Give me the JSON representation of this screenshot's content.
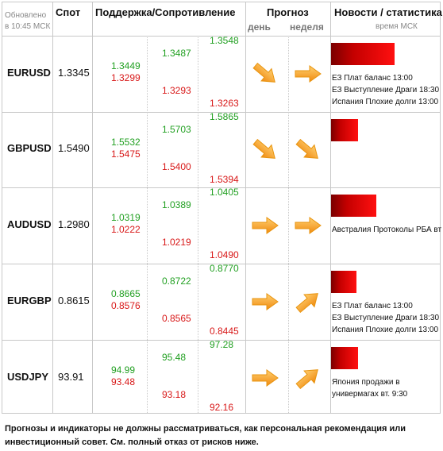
{
  "header": {
    "updated_line1": "Обновлено",
    "updated_line2": "в 10:45 МСК",
    "spot": "Спот",
    "support_resistance": "Поддержка/Сопротивление",
    "forecast": "Прогноз",
    "day": "день",
    "week": "неделя",
    "news": "Новости / статистика",
    "time_msk": "время МСК"
  },
  "rows": [
    {
      "pair": "EURUSD",
      "spot": "1.3345",
      "sup1_g": "1.3449",
      "sup1_r": "1.3299",
      "sup2_g": "1.3487",
      "sup2_r": "1.3293",
      "sup3_g": "1.3548",
      "sup3_r": "1.3263",
      "day_dir": "down-right",
      "week_dir": "right",
      "news": [
        "ЕЗ Плат баланс 13:00",
        "ЕЗ Выступление Драги 18:30",
        "Испания Плохие долги 13:00"
      ]
    },
    {
      "pair": "GBPUSD",
      "spot": "1.5490",
      "sup1_g": "1.5532",
      "sup1_r": "1.5475",
      "sup2_g": "1.5703",
      "sup2_r": "1.5400",
      "sup3_g": "1.5865",
      "sup3_r": "1.5394",
      "day_dir": "down-right",
      "week_dir": "down-right",
      "news": []
    },
    {
      "pair": "AUDUSD",
      "spot": "1.2980",
      "sup1_g": "1.0319",
      "sup1_r": "1.0222",
      "sup2_g": "1.0389",
      "sup2_r": "1.0219",
      "sup3_g": "1.0405",
      "sup3_r": "1.0490",
      "day_dir": "right",
      "week_dir": "right",
      "news": [
        "Австралия Протоколы РБА вт"
      ]
    },
    {
      "pair": "EURGBP",
      "spot": "0.8615",
      "sup1_g": "0.8665",
      "sup1_r": "0.8576",
      "sup2_g": "0.8722",
      "sup2_r": "0.8565",
      "sup3_g": "0.8770",
      "sup3_r": "0.8445",
      "day_dir": "right",
      "week_dir": "up-right",
      "news": [
        "ЕЗ Плат баланс 13:00",
        "ЕЗ Выступление Драги 18:30",
        "Испания Плохие долги 13:00"
      ]
    },
    {
      "pair": "USDJPY",
      "spot": "93.91",
      "sup1_g": "94.99",
      "sup1_r": "93.48",
      "sup2_g": "95.48",
      "sup2_r": "93.18",
      "sup3_g": "97.28",
      "sup3_r": "92.16",
      "day_dir": "right",
      "week_dir": "up-right",
      "news": [
        "Япония продажи в",
        "универмагах вт. 9:30"
      ]
    }
  ],
  "footer": {
    "line1": "Прогнозы и индикаторы не должны рассматриваться, как персональная рекомендация или",
    "line2": "инвестиционный совет. См. полный отказ от рисков ниже."
  },
  "colors": {
    "green": "#22a022",
    "red": "#d81818",
    "arrow": "#f5a623",
    "bar": "#e00000"
  }
}
